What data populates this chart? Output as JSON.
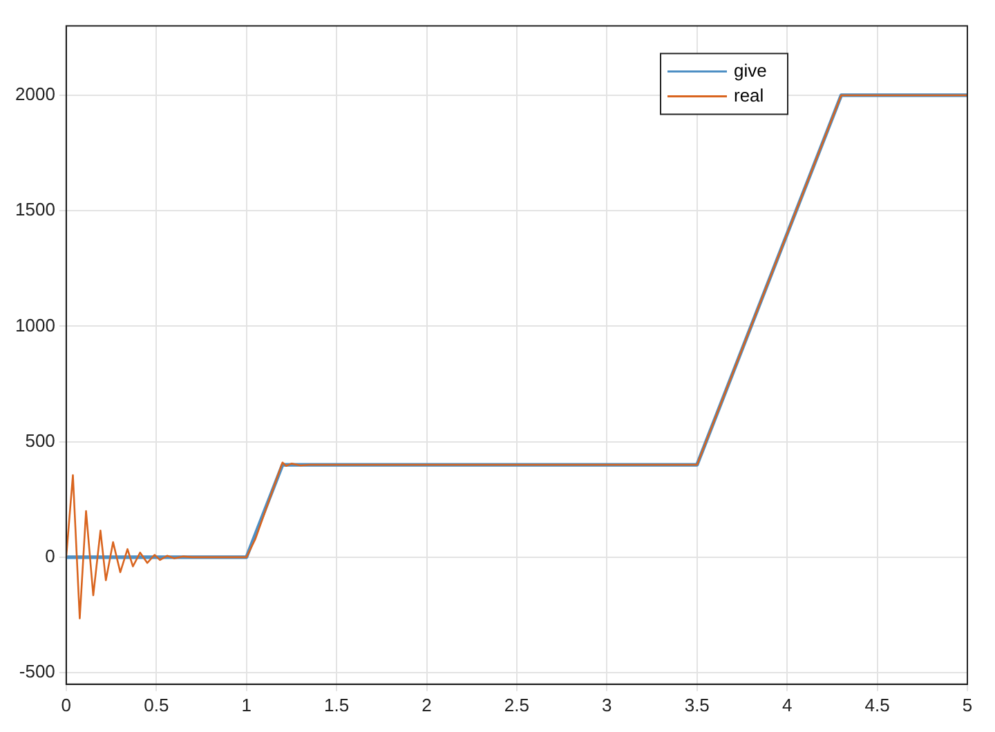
{
  "chart_data": {
    "type": "line",
    "xlim": [
      0,
      5
    ],
    "xticks": [
      0,
      0.5,
      1,
      1.5,
      2,
      2.5,
      3,
      3.5,
      4,
      4.5,
      5
    ],
    "ylim": [
      -550,
      2300
    ],
    "yticks": [
      -500,
      0,
      500,
      1000,
      1500,
      2000
    ],
    "grid": true,
    "legend": "top right",
    "series": [
      {
        "name": "give",
        "color": "#4d8fc4",
        "x": [
          0,
          1,
          1.2,
          3.5,
          4.3,
          5
        ],
        "values": [
          0,
          0,
          400,
          400,
          2000,
          2000
        ]
      },
      {
        "name": "real",
        "color": "#d9641e",
        "x": [
          0,
          0.037,
          0.075,
          0.11,
          0.15,
          0.19,
          0.22,
          0.26,
          0.3,
          0.34,
          0.37,
          0.41,
          0.45,
          0.49,
          0.52,
          0.56,
          0.6,
          0.65,
          0.7,
          1,
          1.05,
          1.2,
          1.22,
          1.25,
          1.3,
          1.35,
          3.5,
          4.3,
          5
        ],
        "values": [
          0,
          355,
          -265,
          200,
          -165,
          115,
          -100,
          65,
          -65,
          35,
          -40,
          20,
          -25,
          10,
          -12,
          6,
          -5,
          3,
          0,
          0,
          80,
          410,
          395,
          405,
          397,
          400,
          400,
          2000,
          2000
        ]
      }
    ]
  }
}
